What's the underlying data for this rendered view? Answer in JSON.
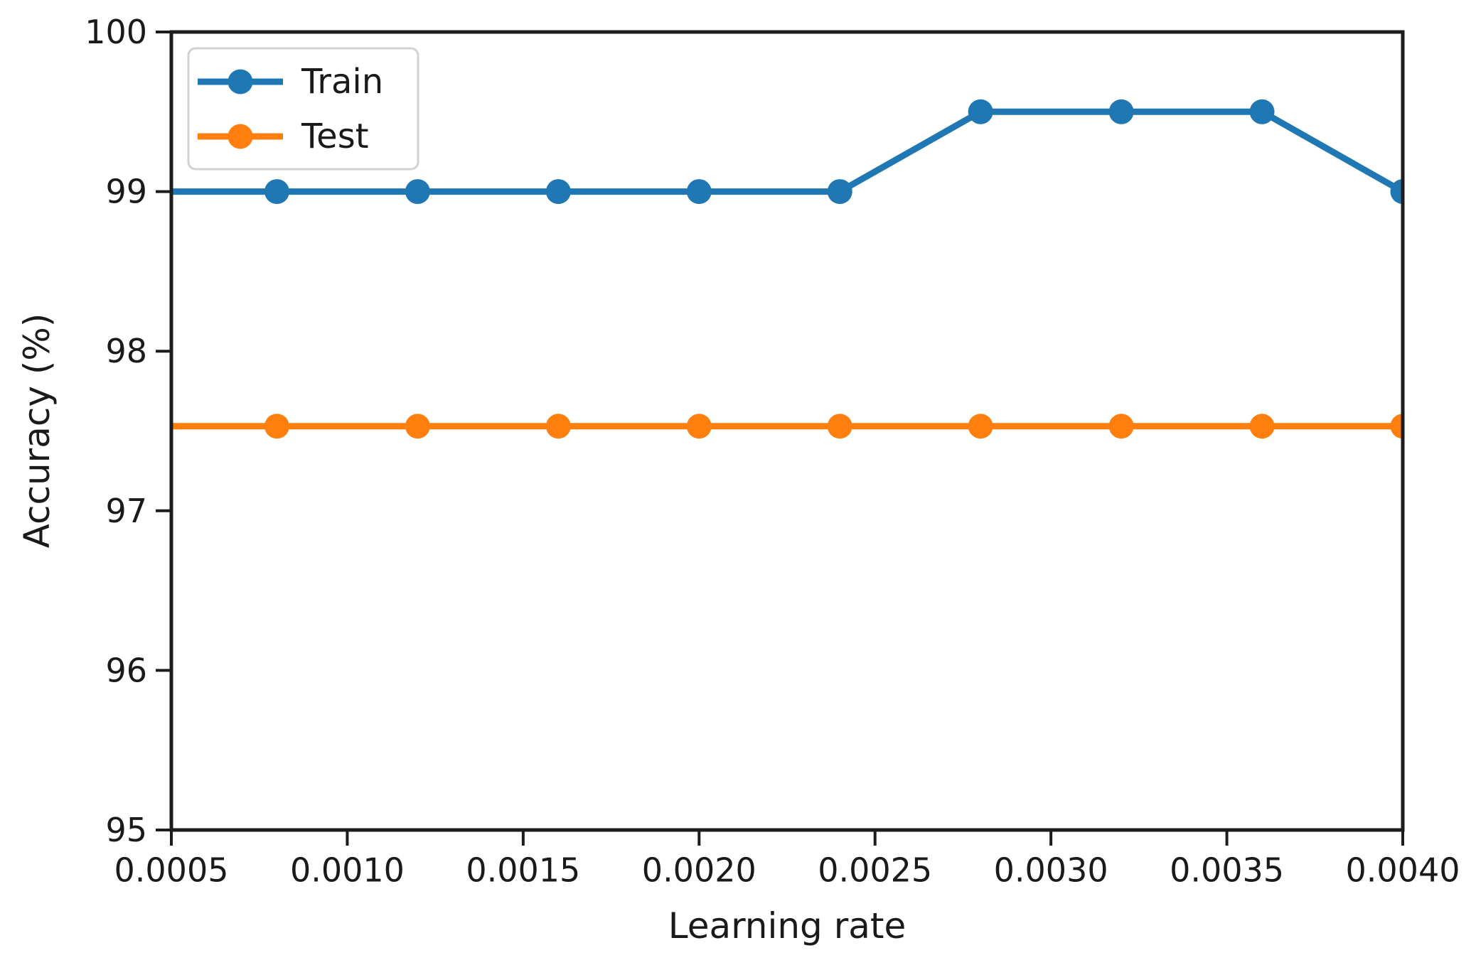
{
  "chart_data": {
    "type": "line",
    "xlabel": "Learning rate",
    "ylabel": "Accuracy (%)",
    "xlim": [
      0.0005,
      0.004
    ],
    "ylim": [
      95,
      100
    ],
    "xtick_values": [
      0.0005,
      0.001,
      0.0015,
      0.002,
      0.0025,
      0.003,
      0.0035,
      0.004
    ],
    "xtick_labels": [
      "0.0005",
      "0.0010",
      "0.0015",
      "0.0020",
      "0.0025",
      "0.0030",
      "0.0035",
      "0.0040"
    ],
    "ytick_values": [
      95,
      96,
      97,
      98,
      99,
      100
    ],
    "ytick_labels": [
      "95",
      "96",
      "97",
      "98",
      "99",
      "100"
    ],
    "x": [
      0.0008,
      0.0012,
      0.0016,
      0.002,
      0.0024,
      0.0028,
      0.0032,
      0.0036,
      0.004
    ],
    "series": [
      {
        "name": "Train",
        "color": "#1f77b4",
        "values": [
          99,
          99,
          99,
          99,
          99,
          99.5,
          99.5,
          99.5,
          99
        ]
      },
      {
        "name": "Test",
        "color": "#ff7f0e",
        "values": [
          97.53,
          97.53,
          97.53,
          97.53,
          97.53,
          97.53,
          97.53,
          97.53,
          97.53
        ]
      }
    ],
    "lines_extend_to_xmin": true,
    "legend_position": "upper left",
    "grid": false,
    "marker": "circle"
  }
}
